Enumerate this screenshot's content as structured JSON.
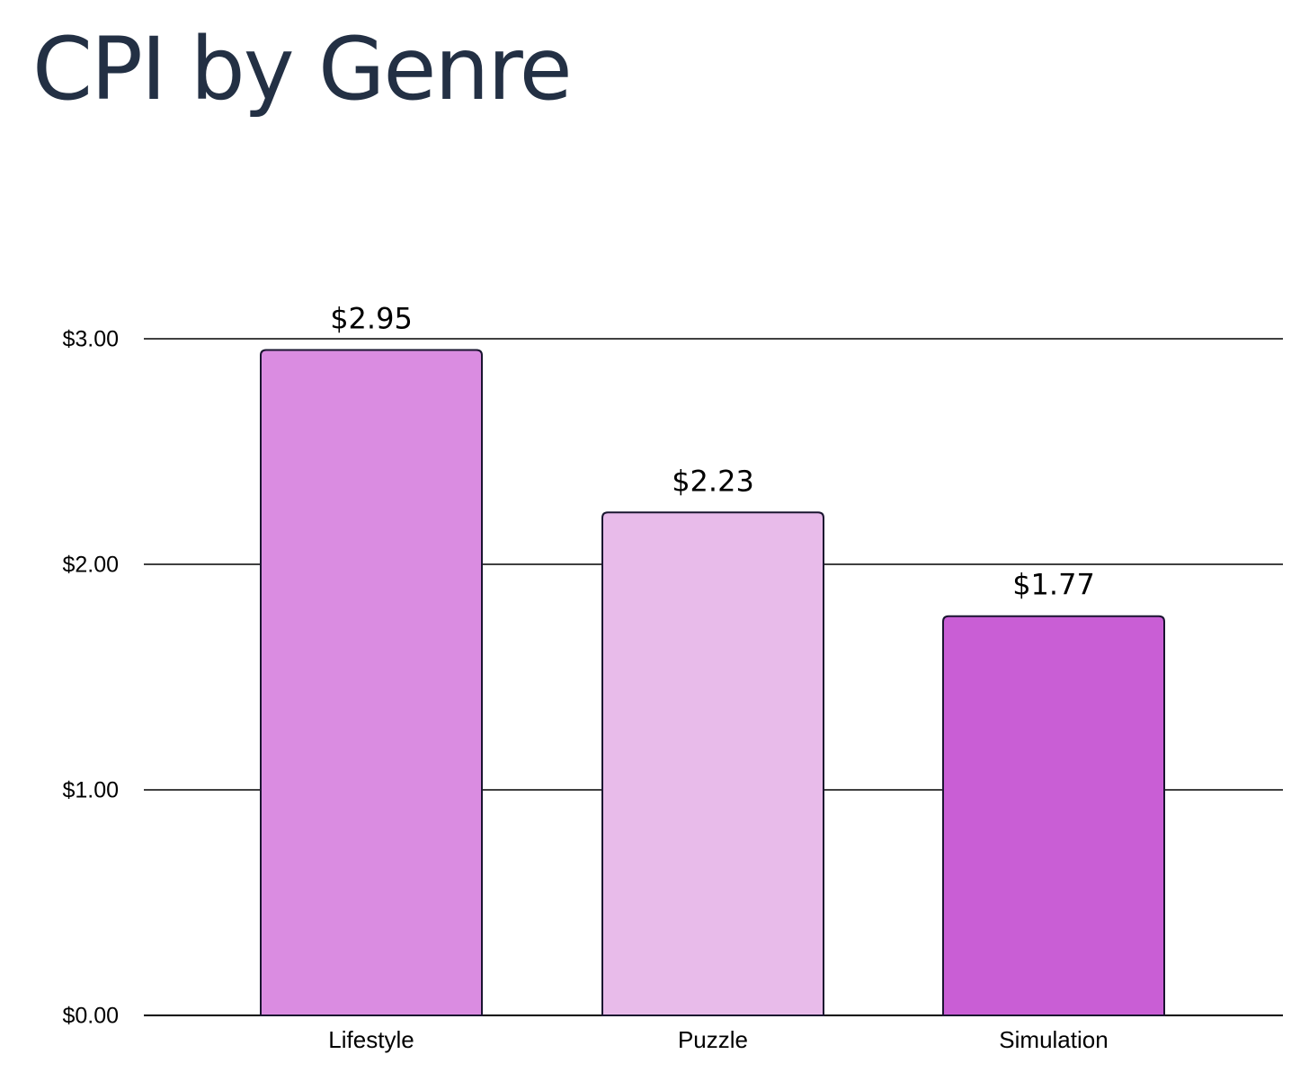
{
  "chart_data": {
    "type": "bar",
    "title": "CPI by Genre",
    "categories": [
      "Lifestyle",
      "Puzzle",
      "Simulation"
    ],
    "values": [
      2.95,
      2.23,
      1.77
    ],
    "value_labels": [
      "$2.95",
      "$2.23",
      "$1.77"
    ],
    "colors": [
      "#DA8CE1",
      "#E8BBEA",
      "#C95ED5"
    ],
    "bar_outline_color": "#1a1530",
    "y_ticks": [
      {
        "value": 0,
        "label": "$0.00"
      },
      {
        "value": 1,
        "label": "$1.00"
      },
      {
        "value": 2,
        "label": "$2.00"
      },
      {
        "value": 3,
        "label": "$3.00"
      }
    ],
    "ylim": [
      0,
      3
    ],
    "grid": true,
    "legend": "none",
    "xlabel": "",
    "ylabel": ""
  }
}
